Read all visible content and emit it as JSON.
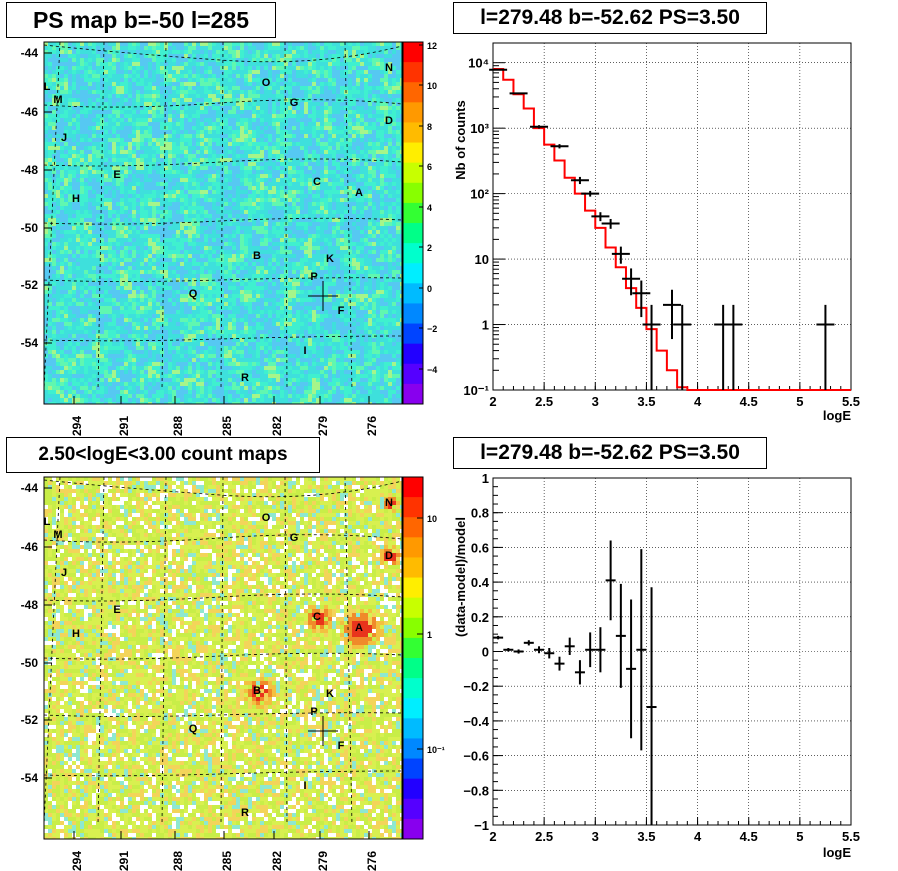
{
  "panels": {
    "tl": {
      "title": "PS map b=-50 l=285"
    },
    "tr": {
      "title": "l=279.48 b=-52.62 PS=3.50"
    },
    "bl": {
      "title": "2.50<logE<3.00 count maps"
    },
    "br": {
      "title": "l=279.48 b=-52.62 PS=3.50"
    }
  },
  "maps": {
    "y_ticks": [
      "-44",
      "-46",
      "-48",
      "-50",
      "-52",
      "-54"
    ],
    "x_ticks": [
      "294",
      "291",
      "288",
      "285",
      "282",
      "279",
      "276"
    ],
    "sources": [
      "O",
      "N",
      "G",
      "L",
      "M",
      "D",
      "J",
      "E",
      "C",
      "A",
      "H",
      "B",
      "K",
      "P",
      "F",
      "Q",
      "I",
      "R"
    ],
    "ps_colorbar": [
      "12",
      "10",
      "8",
      "6",
      "4",
      "2",
      "0",
      "−2",
      "−4"
    ],
    "count_colorbar": [
      "10",
      "1",
      "10⁻¹"
    ]
  },
  "chart_data": [
    {
      "type": "step+errorbar",
      "title": "l=279.48 b=-52.62 PS=3.50",
      "xlabel": "logE",
      "ylabel": "Nb of counts",
      "log_y": true,
      "xlim": [
        2,
        5.5
      ],
      "ylim": [
        0.1,
        20000
      ],
      "x_ticks": [
        "2",
        "2.5",
        "3",
        "3.5",
        "4",
        "4.5",
        "5",
        "5.5"
      ],
      "y_ticks": [
        "10⁻¹",
        "1",
        "10",
        "10²",
        "10³",
        "10⁴"
      ],
      "grid": true,
      "series": [
        {
          "kind": "model-step",
          "color": "#ff0000",
          "edges": [
            2.0,
            2.1,
            2.2,
            2.3,
            2.4,
            2.5,
            2.6,
            2.7,
            2.8,
            2.9,
            3.0,
            3.1,
            3.2,
            3.3,
            3.4,
            3.5,
            3.6,
            3.7,
            3.8,
            3.9,
            4.0,
            4.1,
            4.2,
            4.3,
            5.5
          ],
          "values": [
            8000,
            5500,
            3300,
            2000,
            1000,
            560,
            320,
            175,
            100,
            55,
            30,
            15,
            7.5,
            3.6,
            1.8,
            0.85,
            0.4,
            0.2,
            0.11,
            0.1,
            0.1,
            0.1,
            0.1,
            0.1
          ]
        },
        {
          "kind": "data",
          "color": "#000000",
          "points": [
            {
              "x": 2.05,
              "y": 7800,
              "lo": 7600,
              "hi": 8000
            },
            {
              "x": 2.25,
              "y": 3400,
              "lo": 3300,
              "hi": 3500
            },
            {
              "x": 2.45,
              "y": 1050,
              "lo": 990,
              "hi": 1110
            },
            {
              "x": 2.65,
              "y": 530,
              "lo": 490,
              "hi": 570
            },
            {
              "x": 2.85,
              "y": 160,
              "lo": 140,
              "hi": 180
            },
            {
              "x": 2.95,
              "y": 100,
              "lo": 90,
              "hi": 110
            },
            {
              "x": 3.05,
              "y": 45,
              "lo": 38,
              "hi": 52
            },
            {
              "x": 3.15,
              "y": 35,
              "lo": 29,
              "hi": 41
            },
            {
              "x": 3.25,
              "y": 12,
              "lo": 8.5,
              "hi": 15.5
            },
            {
              "x": 3.35,
              "y": 5,
              "lo": 2.8,
              "hi": 7.2
            },
            {
              "x": 3.45,
              "y": 3,
              "lo": 1.3,
              "hi": 4.7
            },
            {
              "x": 3.55,
              "y": 1,
              "lo": 0.1,
              "hi": 2
            },
            {
              "x": 3.75,
              "y": 2,
              "lo": 0.6,
              "hi": 3.4
            },
            {
              "x": 3.85,
              "y": 1,
              "lo": 0.1,
              "hi": 2
            },
            {
              "x": 4.25,
              "y": 1,
              "lo": 0.1,
              "hi": 2
            },
            {
              "x": 4.35,
              "y": 1,
              "lo": 0.1,
              "hi": 2
            },
            {
              "x": 5.25,
              "y": 1,
              "lo": 0.1,
              "hi": 2
            }
          ]
        }
      ]
    },
    {
      "type": "errorbar",
      "title": "l=279.48 b=-52.62 PS=3.50",
      "xlabel": "logE",
      "ylabel": "(data-model)/model",
      "xlim": [
        2,
        5.5
      ],
      "ylim": [
        -1,
        1
      ],
      "x_ticks": [
        "2",
        "2.5",
        "3",
        "3.5",
        "4",
        "4.5",
        "5",
        "5.5"
      ],
      "y_ticks": [
        "1",
        "0.8",
        "0.6",
        "0.4",
        "0.2",
        "0",
        "−0.2",
        "−0.4",
        "−0.6",
        "−0.8",
        "−1"
      ],
      "grid": true,
      "series": [
        {
          "kind": "residuals",
          "color": "#000000",
          "points": [
            {
              "x": 2.05,
              "y": 0.08,
              "err": 0.01
            },
            {
              "x": 2.15,
              "y": 0.01,
              "err": 0.01
            },
            {
              "x": 2.25,
              "y": 0.0,
              "err": 0.012
            },
            {
              "x": 2.35,
              "y": 0.05,
              "err": 0.015
            },
            {
              "x": 2.45,
              "y": 0.01,
              "err": 0.02
            },
            {
              "x": 2.55,
              "y": -0.01,
              "err": 0.03
            },
            {
              "x": 2.65,
              "y": -0.07,
              "err": 0.04
            },
            {
              "x": 2.75,
              "y": 0.03,
              "err": 0.05
            },
            {
              "x": 2.85,
              "y": -0.12,
              "err": 0.07
            },
            {
              "x": 2.95,
              "y": 0.01,
              "err": 0.1
            },
            {
              "x": 3.05,
              "y": 0.01,
              "err": 0.13
            },
            {
              "x": 3.15,
              "y": 0.41,
              "err": 0.23
            },
            {
              "x": 3.25,
              "y": 0.09,
              "err": 0.3
            },
            {
              "x": 3.35,
              "y": -0.1,
              "err": 0.4
            },
            {
              "x": 3.45,
              "y": 0.01,
              "err": 0.58
            },
            {
              "x": 3.55,
              "y": -0.32,
              "err": 0.69
            }
          ]
        }
      ]
    }
  ]
}
